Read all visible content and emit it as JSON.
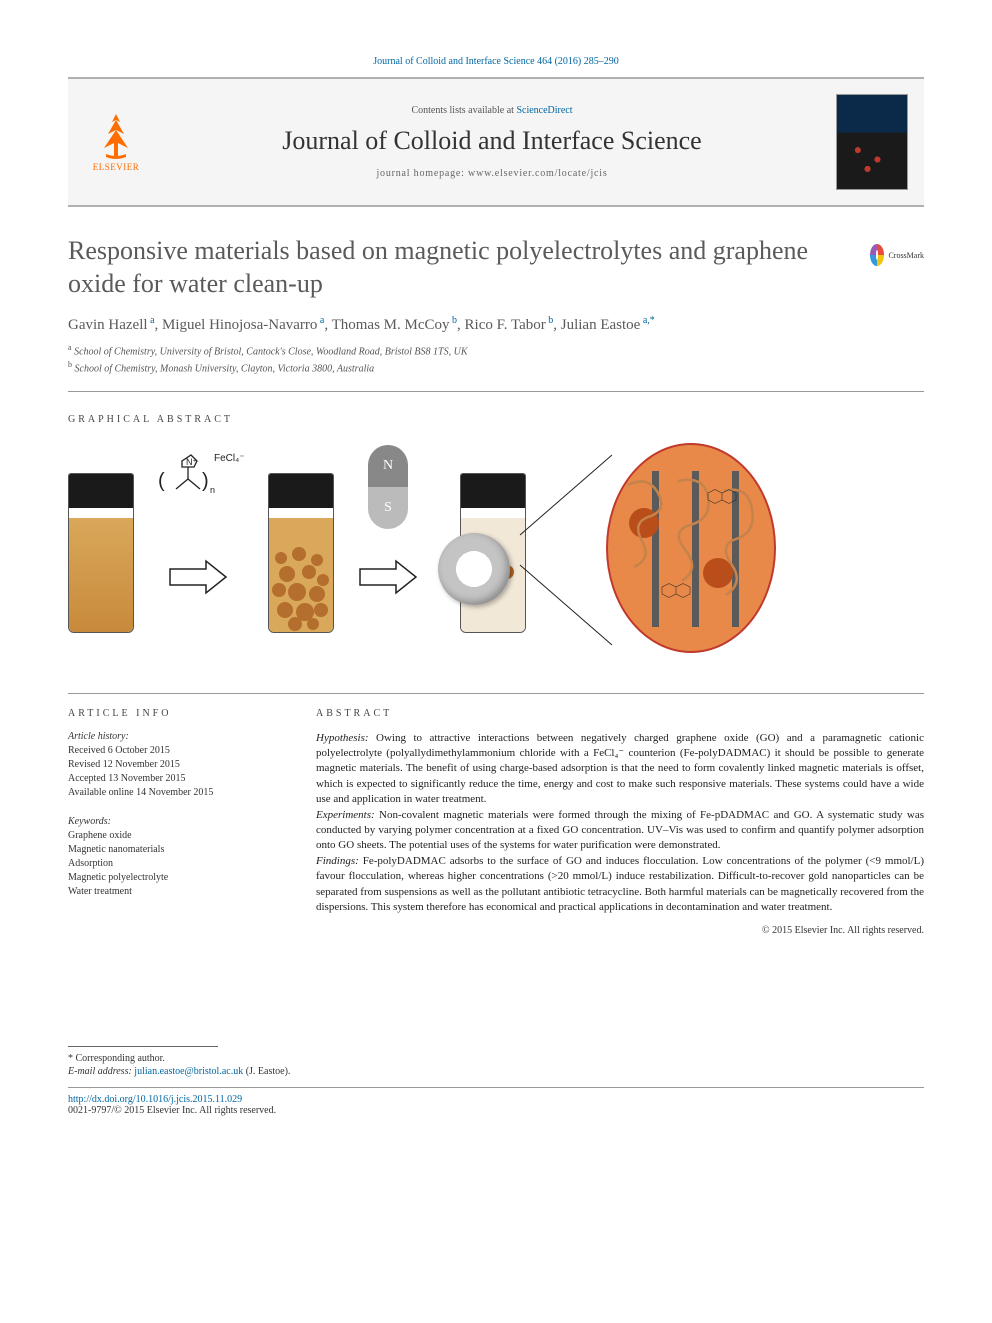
{
  "citation": "Journal of Colloid and Interface Science 464 (2016) 285–290",
  "header": {
    "contents_prefix": "Contents lists available at ",
    "contents_link": "ScienceDirect",
    "journal_name": "Journal of Colloid and Interface Science",
    "homepage": "journal homepage: www.elsevier.com/locate/jcis",
    "publisher_name": "ELSEVIER"
  },
  "crossmark_label": "CrossMark",
  "article": {
    "title": "Responsive materials based on magnetic polyelectrolytes and graphene oxide for water clean-up",
    "authors": [
      {
        "name": "Gavin Hazell",
        "aff": "a"
      },
      {
        "name": "Miguel Hinojosa-Navarro",
        "aff": "a"
      },
      {
        "name": "Thomas M. McCoy",
        "aff": "b"
      },
      {
        "name": "Rico F. Tabor",
        "aff": "b"
      },
      {
        "name": "Julian Eastoe",
        "aff": "a",
        "corr": true
      }
    ],
    "affiliations": [
      {
        "key": "a",
        "text": "School of Chemistry, University of Bristol, Cantock's Close, Woodland Road, Bristol BS8 1TS, UK"
      },
      {
        "key": "b",
        "text": "School of Chemistry, Monash University, Clayton, Victoria 3800, Australia"
      }
    ]
  },
  "sections": {
    "graphical_abstract": "GRAPHICAL ABSTRACT",
    "article_info": "ARTICLE INFO",
    "abstract": "ABSTRACT"
  },
  "graphical": {
    "chem_formula": "FeCl₄⁻",
    "magnet_n": "N",
    "magnet_s": "S",
    "vial1_color": "#c88a3a",
    "vial2_top": "#d9a85a",
    "vial2_floc": "#b0682a",
    "vial3_clear": "#f2e8d8",
    "oval_fill": "#e8894a",
    "oval_stroke": "#c0392b",
    "particle_color": "#b94e1a",
    "rod_color": "#5a5a5a",
    "squiggle_color": "#c4834a"
  },
  "info": {
    "history_head": "Article history:",
    "history": [
      "Received 6 October 2015",
      "Revised 12 November 2015",
      "Accepted 13 November 2015",
      "Available online 14 November 2015"
    ],
    "keywords_head": "Keywords:",
    "keywords": [
      "Graphene oxide",
      "Magnetic nanomaterials",
      "Adsorption",
      "Magnetic polyelectrolyte",
      "Water treatment"
    ]
  },
  "abstract": {
    "hypothesis_label": "Hypothesis:",
    "hypothesis": " Owing to attractive interactions between negatively charged graphene oxide (GO) and a paramagnetic cationic polyelectrolyte (polyallydimethylammonium chloride with a FeCl₄⁻ counterion (Fe-polyDADMAC) it should be possible to generate magnetic materials. The benefit of using charge-based adsorption is that the need to form covalently linked magnetic materials is offset, which is expected to significantly reduce the time, energy and cost to make such responsive materials. These systems could have a wide use and application in water treatment.",
    "experiments_label": "Experiments:",
    "experiments": " Non-covalent magnetic materials were formed through the mixing of Fe-pDADMAC and GO. A systematic study was conducted by varying polymer concentration at a fixed GO concentration. UV–Vis was used to confirm and quantify polymer adsorption onto GO sheets. The potential uses of the systems for water purification were demonstrated.",
    "findings_label": "Findings:",
    "findings": " Fe-polyDADMAC adsorbs to the surface of GO and induces flocculation. Low concentrations of the polymer (<9 mmol/L) favour flocculation, whereas higher concentrations (>20 mmol/L) induce restabilization. Difficult-to-recover gold nanoparticles can be separated from suspensions as well as the pollutant antibiotic tetracycline. Both harmful materials can be magnetically recovered from the dispersions. This system therefore has economical and practical applications in decontamination and water treatment.",
    "copyright": "© 2015 Elsevier Inc. All rights reserved."
  },
  "footer": {
    "corr_marker": "* Corresponding author.",
    "email_label": "E-mail address:",
    "email": "julian.eastoe@bristol.ac.uk",
    "email_name": "(J. Eastoe).",
    "doi": "http://dx.doi.org/10.1016/j.jcis.2015.11.029",
    "issn_line": "0021-9797/© 2015 Elsevier Inc. All rights reserved."
  }
}
